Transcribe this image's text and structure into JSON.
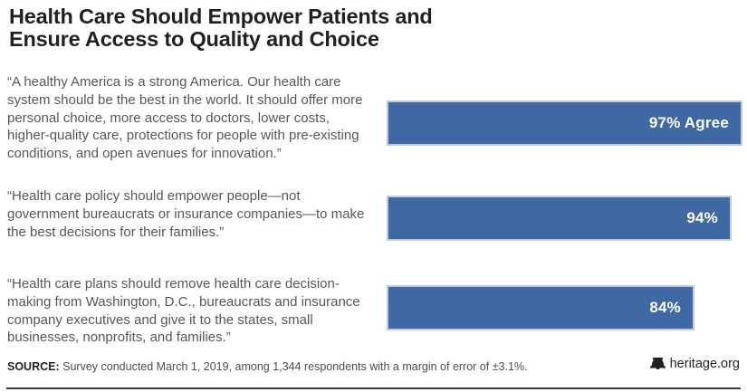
{
  "title": "Health Care Should Empower Patients and Ensure Access to Quality and Choice",
  "chart_data": {
    "type": "bar",
    "orientation": "horizontal",
    "title": "Health Care Should Empower Patients and Ensure Access to Quality and Choice",
    "categories": [
      "“A healthy America is a strong America. Our health care system should be the best in the world. It should offer more personal choice, more access to doctors, lower costs, higher-quality care, protections for people with pre-existing conditions, and open avenues for innovation.”",
      "“Health care policy should empower people—not government bureaucrats or insurance companies—to make the best decisions for their families.”",
      "“Health care plans should remove health care decision-making from Washington, D.C., bureaucrats and insurance company executives and give it to the states, small businesses, nonprofits, and families.”"
    ],
    "values": [
      97,
      94,
      84
    ],
    "bar_labels": [
      "97% Agree",
      "94%",
      "84%"
    ],
    "xlim": [
      0,
      100
    ],
    "grid": false,
    "legend": "none",
    "bar_color": "#4068a3",
    "bar_border_color": "#bdc9e2",
    "bar_label_color": "#ffffff"
  },
  "footer": {
    "source_label": "SOURCE:",
    "source_text": " Survey conducted March 1, 2019, among 1,344 respondents with a margin of error of ±3.1%.",
    "brand": "heritage.org"
  },
  "icons": {
    "brand_icon": "liberty-bell-icon"
  },
  "colors": {
    "title_text": "#231f20",
    "quote_text": "#56575b",
    "footer_rule": "#3a3a3c"
  }
}
